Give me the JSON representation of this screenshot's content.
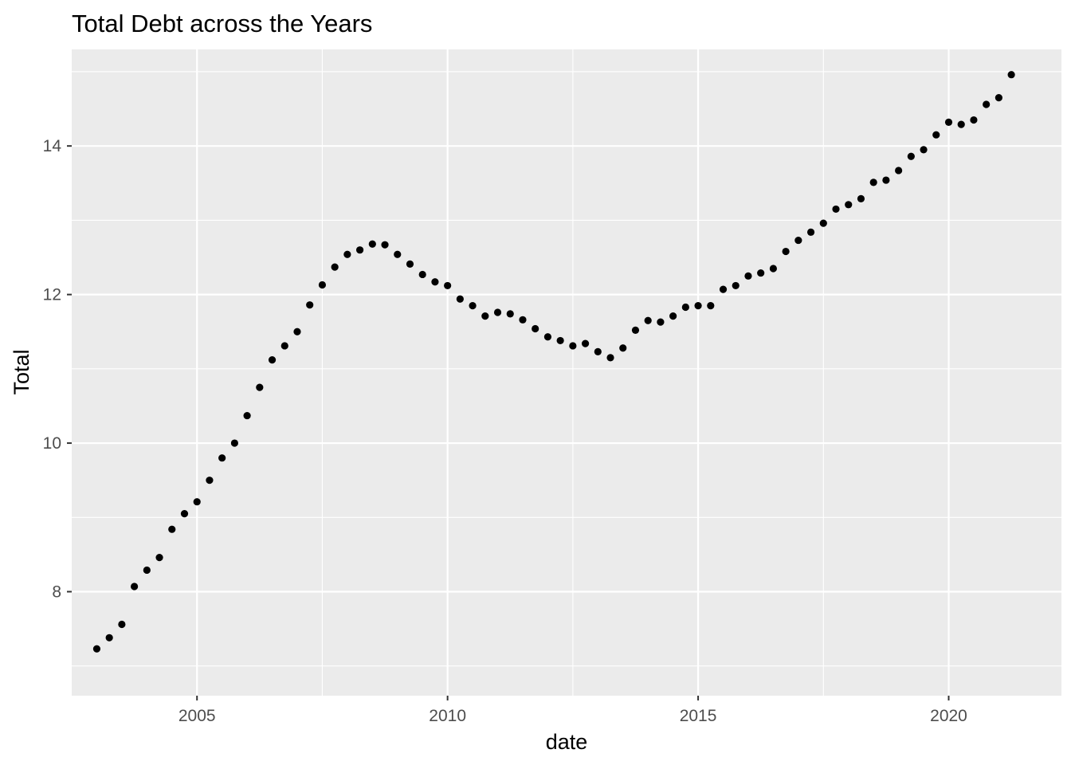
{
  "chart_data": {
    "type": "scatter",
    "title": "Total Debt across the Years",
    "xlabel": "date",
    "ylabel": "Total",
    "xlim": [
      2002.5,
      2022.25
    ],
    "ylim": [
      6.6,
      15.3
    ],
    "x_ticks": [
      2005,
      2010,
      2015,
      2020
    ],
    "x_tick_labels": [
      "2005",
      "2010",
      "2015",
      "2020"
    ],
    "y_ticks": [
      8,
      10,
      12,
      14
    ],
    "y_tick_labels": [
      "8",
      "10",
      "12",
      "14"
    ],
    "grid": true,
    "legend": "none",
    "point_color": "#000000",
    "panel_background": "#ebebeb",
    "x": [
      2003.0,
      2003.25,
      2003.5,
      2003.75,
      2004.0,
      2004.25,
      2004.5,
      2004.75,
      2005.0,
      2005.25,
      2005.5,
      2005.75,
      2006.0,
      2006.25,
      2006.5,
      2006.75,
      2007.0,
      2007.25,
      2007.5,
      2007.75,
      2008.0,
      2008.25,
      2008.5,
      2008.75,
      2009.0,
      2009.25,
      2009.5,
      2009.75,
      2010.0,
      2010.25,
      2010.5,
      2010.75,
      2011.0,
      2011.25,
      2011.5,
      2011.75,
      2012.0,
      2012.25,
      2012.5,
      2012.75,
      2013.0,
      2013.25,
      2013.5,
      2013.75,
      2014.0,
      2014.25,
      2014.5,
      2014.75,
      2015.0,
      2015.25,
      2015.5,
      2015.75,
      2016.0,
      2016.25,
      2016.5,
      2016.75,
      2017.0,
      2017.25,
      2017.5,
      2017.75,
      2018.0,
      2018.25,
      2018.5,
      2018.75,
      2019.0,
      2019.25,
      2019.5,
      2019.75,
      2020.0,
      2020.25,
      2020.5,
      2020.75,
      2021.0,
      2021.25
    ],
    "y": [
      7.23,
      7.38,
      7.56,
      8.07,
      8.29,
      8.46,
      8.84,
      9.05,
      9.21,
      9.5,
      9.8,
      10.0,
      10.37,
      10.75,
      11.12,
      11.31,
      11.5,
      11.86,
      12.13,
      12.37,
      12.54,
      12.6,
      12.68,
      12.67,
      12.54,
      12.41,
      12.27,
      12.17,
      12.12,
      11.94,
      11.85,
      11.71,
      11.76,
      11.74,
      11.66,
      11.54,
      11.43,
      11.38,
      11.31,
      11.34,
      11.23,
      11.15,
      11.28,
      11.52,
      11.65,
      11.63,
      11.71,
      11.83,
      11.85,
      11.85,
      12.07,
      12.12,
      12.25,
      12.29,
      12.35,
      12.58,
      12.73,
      12.84,
      12.96,
      13.15,
      13.21,
      13.29,
      13.51,
      13.54,
      13.67,
      13.86,
      13.95,
      14.15,
      14.32,
      14.29,
      14.35,
      14.56,
      14.65,
      14.96
    ]
  }
}
